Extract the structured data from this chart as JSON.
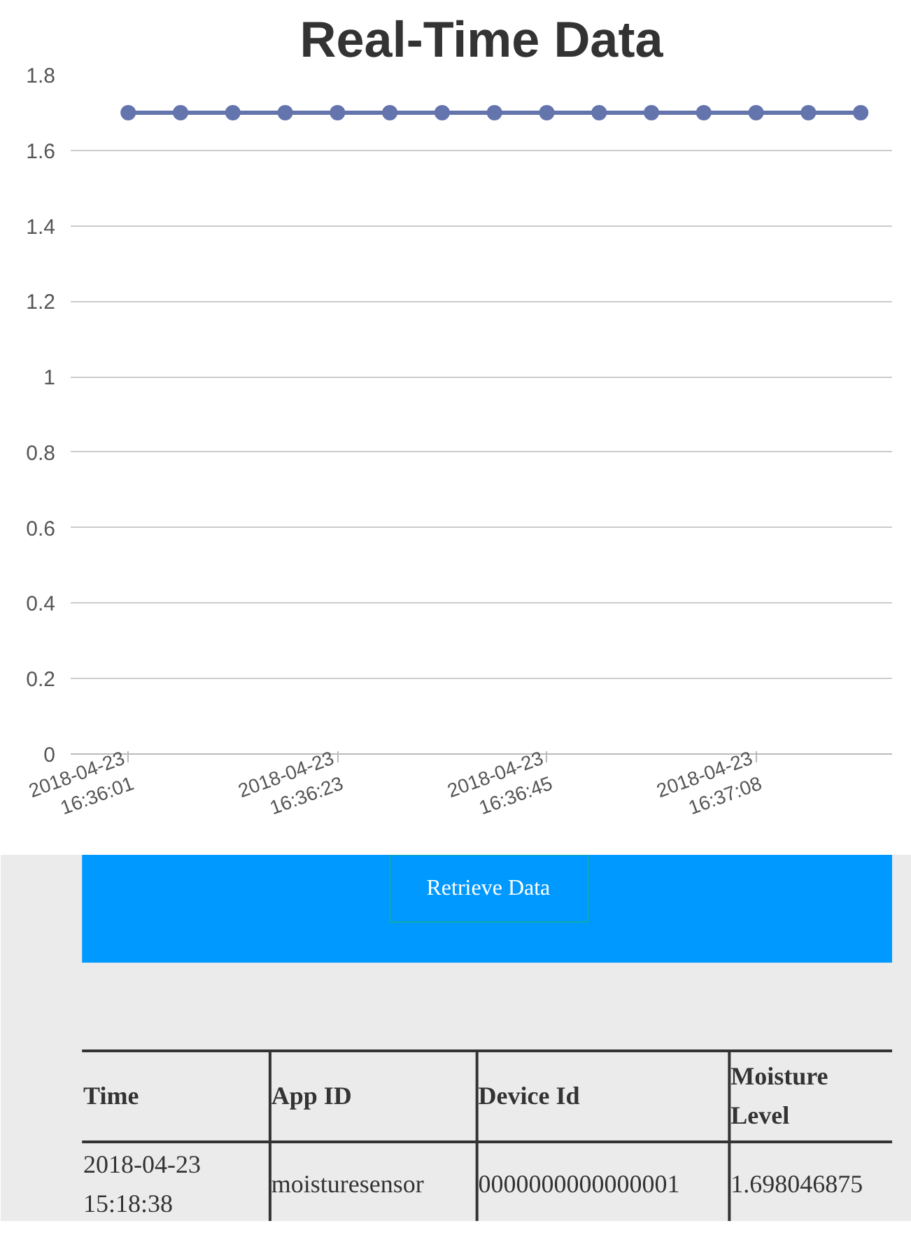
{
  "chart_data": [
    {
      "type": "line",
      "title": "Real-Time Data",
      "categories": [
        "2018-04-23 16:36:01",
        null,
        null,
        null,
        "2018-04-23 16:36:23",
        null,
        null,
        null,
        "2018-04-23 16:36:45",
        null,
        null,
        null,
        "2018-04-23 16:37:08",
        null,
        null
      ],
      "series": [
        {
          "color": "#6474ad",
          "values": [
            1.7,
            1.7,
            1.7,
            1.7,
            1.7,
            1.7,
            1.7,
            1.7,
            1.7,
            1.7,
            1.7,
            1.7,
            1.7,
            1.7,
            1.7
          ]
        }
      ],
      "ylim": [
        0,
        1.8
      ],
      "yticks": [
        0,
        0.2,
        0.4,
        0.6,
        0.8,
        1,
        1.2,
        1.4,
        1.6,
        1.8
      ],
      "grid": "y",
      "marker": "circle",
      "line_style": "solid"
    },
    {
      "type": "other",
      "annotations": [
        "Retrieve Data",
        "Time",
        "App ID",
        "Device Id",
        "Moisture Level",
        "2018-04-23 15:18:38",
        "moisturesensor",
        "0000000000000001",
        "1.698046875"
      ]
    }
  ]
}
